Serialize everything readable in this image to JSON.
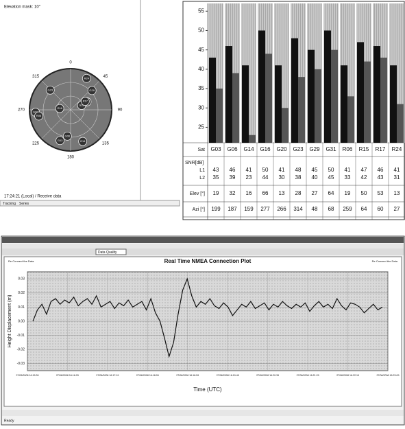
{
  "skyplot": {
    "title": "Elevation mask: 10°",
    "azimuth_labels": [
      0,
      45,
      90,
      135,
      180,
      225,
      270,
      315
    ],
    "status": "17:24:21 (Local) / Receive data",
    "tabs": [
      "Tracking",
      "Series"
    ]
  },
  "snr_table": {
    "ylim": [
      21,
      57
    ],
    "yticks": [
      25,
      30,
      35,
      40,
      45,
      50,
      55
    ],
    "headers": {
      "sat": "Sat",
      "snr": "SNR[dB]",
      "l1": "L1",
      "l2": "L2",
      "elev": "Elev [°]",
      "azi": "Azi [°]"
    },
    "sats": [
      "G03",
      "G06",
      "G14",
      "G16",
      "G20",
      "G23",
      "G29",
      "G31",
      "R06",
      "R15",
      "R17",
      "R24"
    ],
    "l1": [
      43,
      46,
      41,
      50,
      41,
      48,
      45,
      50,
      41,
      47,
      46,
      41
    ],
    "l2": [
      35,
      39,
      23,
      44,
      30,
      38,
      40,
      45,
      33,
      42,
      43,
      31
    ],
    "elev": [
      19,
      32,
      16,
      66,
      13,
      28,
      27,
      64,
      19,
      50,
      53,
      13
    ],
    "azi": [
      199,
      187,
      159,
      277,
      266,
      314,
      48,
      68,
      259,
      64,
      60,
      27
    ],
    "l1_color": "#111111",
    "l2_color": "#555555"
  },
  "nmea_window": {
    "toolbar": "Data Quality",
    "status": "Ready",
    "plot": {
      "title": "Real Time NMEA Connection Plot",
      "left_note": "Re Connect the Data",
      "right_note": "Re Connect the Data",
      "y_label": "Height Displacement (m)",
      "x_label": "Time (UTC)",
      "ylim": [
        -0.035,
        0.035
      ],
      "yticks": [
        0.03,
        0.02,
        0.01,
        {
          "value": 0,
          "label": "0.00"
        },
        -0.01,
        -0.02,
        -0.03
      ],
      "x_labels": [
        "27/06/2008 16:15:39",
        "27/06/2008 16:16:29",
        "27/06/2008 16:17:19",
        "27/06/2008 16:18:09",
        "27/06/2008 16:18:59",
        "27/06/2008 16:19:49",
        "27/06/2008 16:20:39",
        "27/06/2008 16:21:29",
        "27/06/2008 16:22:19",
        "27/06/2008 16:23:09"
      ],
      "color": "#111111",
      "values": [
        0.0,
        0.008,
        0.012,
        0.005,
        0.014,
        0.016,
        0.012,
        0.015,
        0.013,
        0.017,
        0.011,
        0.014,
        0.016,
        0.012,
        0.018,
        0.01,
        0.012,
        0.014,
        0.009,
        0.013,
        0.011,
        0.015,
        0.01,
        0.012,
        0.014,
        0.008,
        0.016,
        0.006,
        0.0,
        -0.012,
        -0.025,
        -0.015,
        0.005,
        0.022,
        0.03,
        0.018,
        0.01,
        0.014,
        0.012,
        0.016,
        0.011,
        0.009,
        0.013,
        0.01,
        0.004,
        0.008,
        0.012,
        0.01,
        0.014,
        0.009,
        0.011,
        0.013,
        0.008,
        0.012,
        0.01,
        0.014,
        0.011,
        0.009,
        0.012,
        0.01,
        0.013,
        0.007,
        0.011,
        0.014,
        0.01,
        0.012,
        0.009,
        0.016,
        0.011,
        0.008,
        0.013,
        0.012,
        0.01,
        0.006,
        0.009,
        0.012,
        0.008,
        0.01
      ]
    }
  }
}
